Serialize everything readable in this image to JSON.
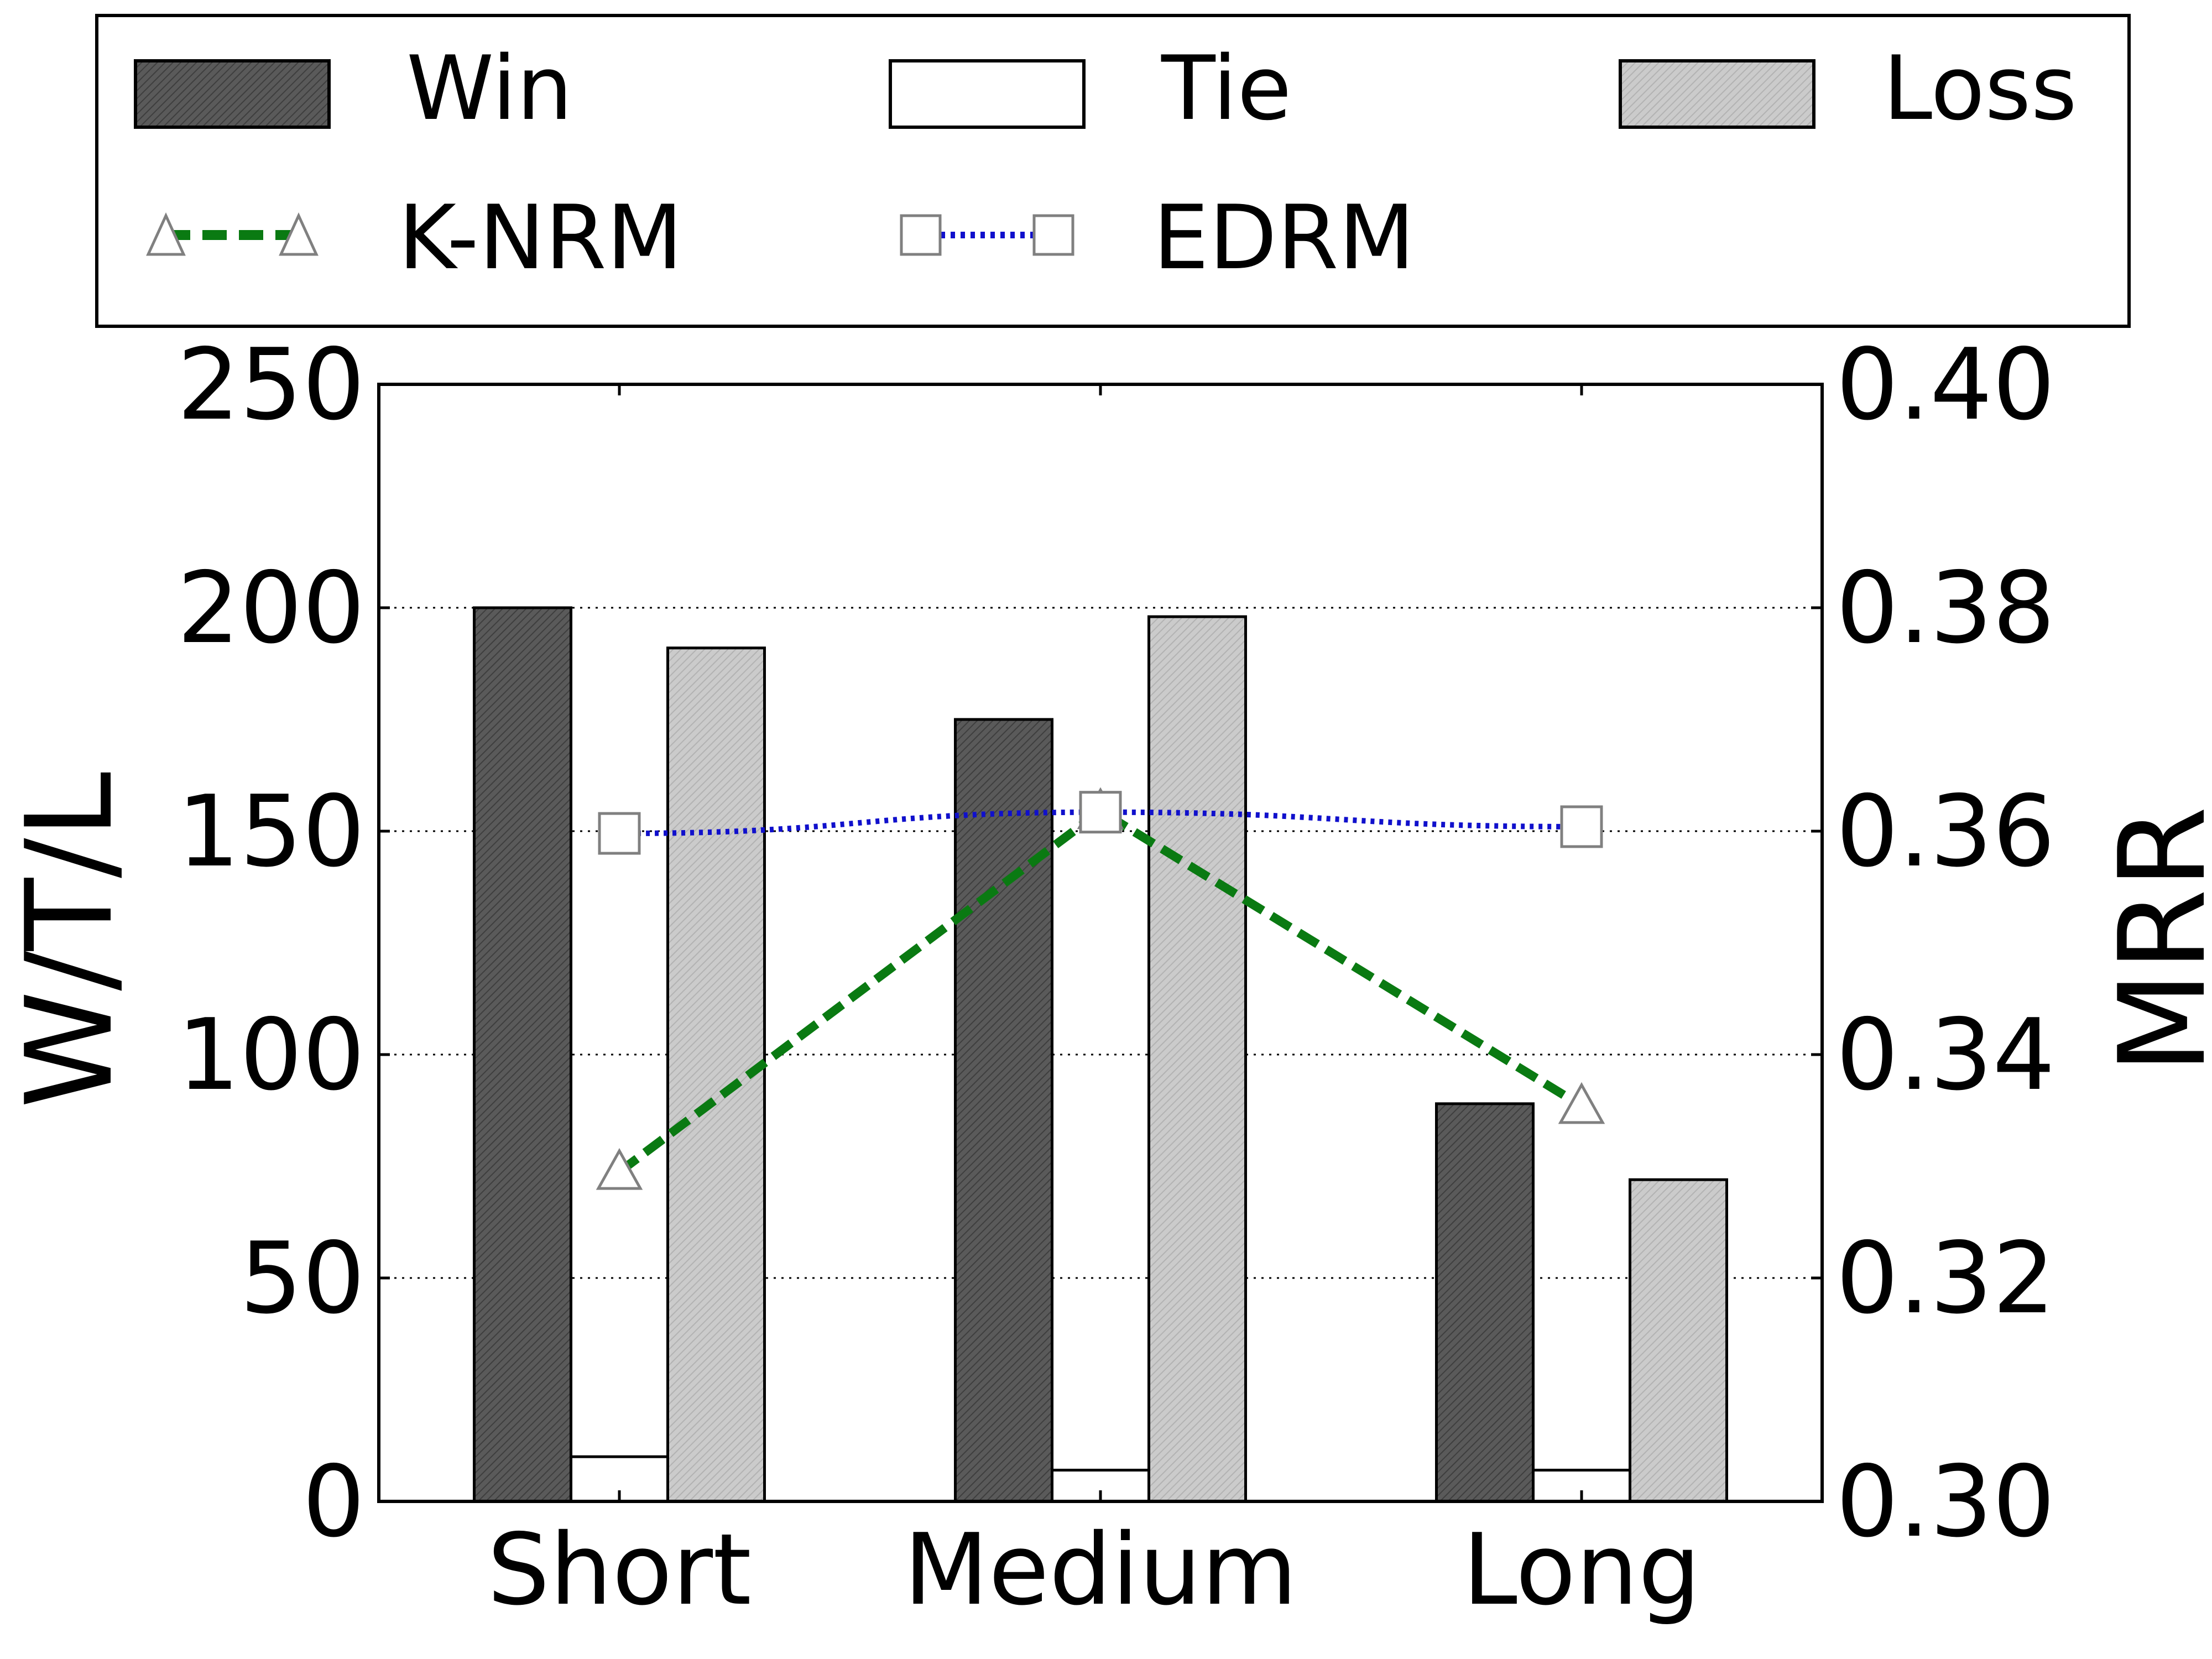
{
  "chart_data": {
    "type": "bar",
    "categories": [
      "Short",
      "Medium",
      "Long"
    ],
    "ylabel": "W/T/L",
    "y2label": "MRR",
    "ylim": [
      0,
      250
    ],
    "y2lim": [
      0.3,
      0.4
    ],
    "yticks": [
      "0",
      "50",
      "100",
      "150",
      "200",
      "250"
    ],
    "y2ticks": [
      "0.30",
      "0.32",
      "0.34",
      "0.36",
      "0.38",
      "0.40"
    ],
    "grid": "horizontal dotted",
    "legend_position": "top",
    "series": [
      {
        "name": "Win",
        "kind": "bar",
        "axis": "left",
        "values": [
          200,
          175,
          89
        ],
        "color": "#5a5a5a"
      },
      {
        "name": "Tie",
        "kind": "bar",
        "axis": "left",
        "values": [
          10,
          7,
          7
        ],
        "color": "#ffffff"
      },
      {
        "name": "Loss",
        "kind": "bar",
        "axis": "left",
        "values": [
          191,
          198,
          72
        ],
        "color": "#c8c8c8"
      },
      {
        "name": "K-NRM",
        "kind": "line",
        "axis": "right",
        "values": [
          0.3295,
          0.3618,
          0.3354
        ],
        "color": "#0a7a12",
        "marker": "triangle",
        "linestyle": "dashed"
      },
      {
        "name": "EDRM",
        "kind": "line",
        "axis": "right",
        "values": [
          0.3598,
          0.3617,
          0.3604
        ],
        "color": "#1010cc",
        "marker": "square",
        "linestyle": "dotted"
      }
    ]
  }
}
